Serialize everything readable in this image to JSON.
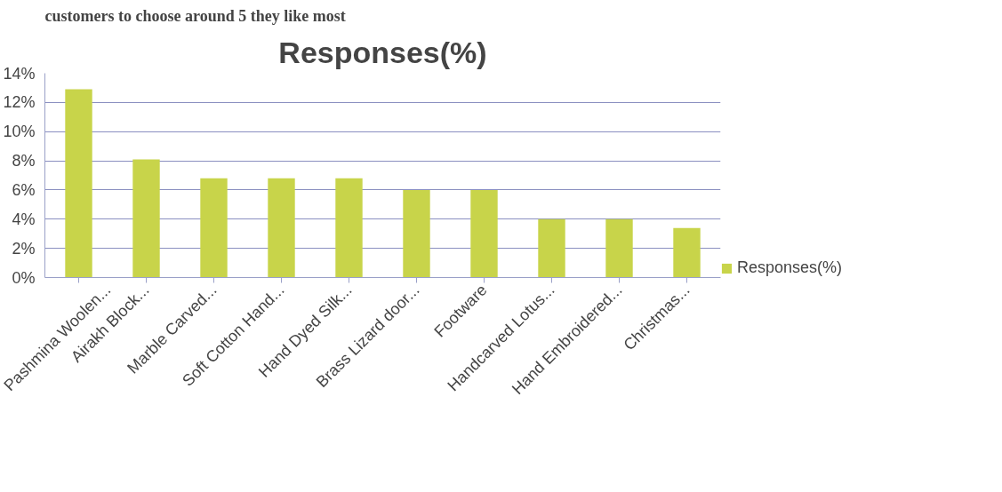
{
  "chart_data": {
    "type": "bar",
    "title": "Responses(%)",
    "annotations": [
      "customers to choose around 5 they like most"
    ],
    "categories": [
      "Pashmina Woolen...",
      "Airakh Block...",
      "Marble Carved...",
      "Soft Cotton Hand...",
      "Hand Dyed Silk...",
      "Brass Lizard door...",
      "Footware",
      "Handcarved Lotus...",
      "Hand Embroidered...",
      "Christmas..."
    ],
    "series": [
      {
        "name": "Responses(%)",
        "color": "#c8d44a",
        "values": [
          12.9,
          8.1,
          6.8,
          6.8,
          6.8,
          6.0,
          6.0,
          4.0,
          4.0,
          3.4
        ]
      }
    ],
    "ylim": [
      0,
      14
    ],
    "yticks": [
      {
        "value": 0,
        "label": "0%"
      },
      {
        "value": 2,
        "label": "2%"
      },
      {
        "value": 4,
        "label": "4%"
      },
      {
        "value": 6,
        "label": "6%"
      },
      {
        "value": 8,
        "label": "8%"
      },
      {
        "value": 10,
        "label": "10%"
      },
      {
        "value": 12,
        "label": "12%"
      },
      {
        "value": 14,
        "label": "14%"
      }
    ],
    "grid": "y",
    "legend": "right"
  }
}
